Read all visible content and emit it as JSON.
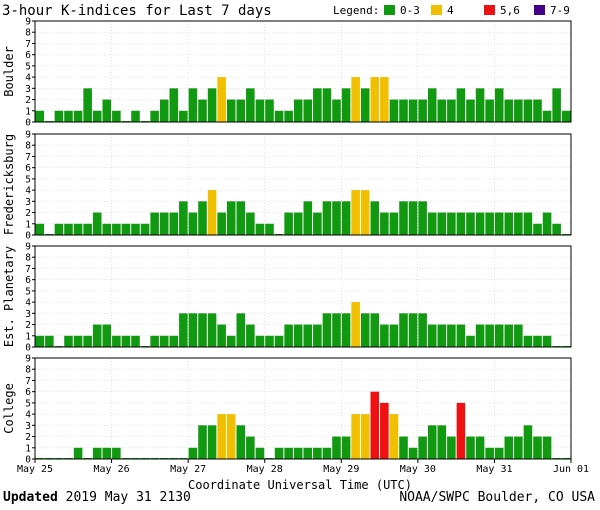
{
  "chart_data": {
    "type": "bar",
    "title": "3-hour K-indices for Last 7 days",
    "legend": {
      "label": "Legend:",
      "placement": "top-right",
      "entries": [
        {
          "label": "0-3",
          "color": "#119911"
        },
        {
          "label": "4",
          "color": "#f0c000"
        },
        {
          "label": "5,6",
          "color": "#ee1111"
        },
        {
          "label": "7-9",
          "color": "#440088"
        }
      ]
    },
    "xlabel": "Coordinate Universal Time (UTC)",
    "x_ticks": [
      "May 25",
      "May 26",
      "May 27",
      "May 28",
      "May 29",
      "May 30",
      "May 31",
      "Jun 01"
    ],
    "ylim": [
      0,
      9
    ],
    "y_ticks": [
      "0",
      "1",
      "2",
      "3",
      "4",
      "5",
      "6",
      "7",
      "8",
      "9"
    ],
    "bars_per_panel": 56,
    "panels": [
      {
        "name": "Boulder",
        "values": [
          1,
          0,
          1,
          1,
          1,
          3,
          1,
          2,
          1,
          0,
          1,
          0,
          1,
          2,
          3,
          1,
          3,
          2,
          3,
          4,
          2,
          2,
          3,
          2,
          2,
          1,
          1,
          2,
          2,
          3,
          3,
          2,
          3,
          4,
          3,
          4,
          4,
          2,
          2,
          2,
          2,
          3,
          2,
          2,
          3,
          2,
          3,
          2,
          3,
          2,
          2,
          2,
          2,
          1,
          3,
          1
        ]
      },
      {
        "name": "Fredericksburg",
        "values": [
          1,
          0,
          1,
          1,
          1,
          1,
          2,
          1,
          1,
          1,
          1,
          1,
          2,
          2,
          2,
          3,
          2,
          3,
          4,
          2,
          3,
          3,
          2,
          1,
          1,
          0,
          2,
          2,
          3,
          2,
          3,
          3,
          3,
          4,
          4,
          3,
          2,
          2,
          3,
          3,
          3,
          2,
          2,
          2,
          2,
          2,
          2,
          2,
          2,
          2,
          2,
          2,
          1,
          2,
          1,
          0
        ]
      },
      {
        "name": "Est. Planetary",
        "values": [
          1,
          1,
          0,
          1,
          1,
          1,
          2,
          2,
          1,
          1,
          1,
          0,
          1,
          1,
          1,
          3,
          3,
          3,
          3,
          2,
          1,
          3,
          2,
          1,
          1,
          1,
          2,
          2,
          2,
          2,
          3,
          3,
          3,
          4,
          3,
          3,
          2,
          2,
          3,
          3,
          3,
          2,
          2,
          2,
          2,
          1,
          2,
          2,
          2,
          2,
          2,
          1,
          1,
          1,
          0,
          0
        ]
      },
      {
        "name": "College",
        "values": [
          0,
          0,
          0,
          0,
          1,
          0,
          1,
          1,
          1,
          0,
          0,
          0,
          0,
          0,
          0,
          0,
          1,
          3,
          3,
          4,
          4,
          3,
          2,
          1,
          0,
          1,
          1,
          1,
          1,
          1,
          1,
          2,
          2,
          4,
          4,
          6,
          5,
          4,
          2,
          1,
          2,
          3,
          3,
          2,
          5,
          2,
          2,
          1,
          1,
          2,
          2,
          3,
          2,
          2,
          0,
          0
        ]
      }
    ]
  },
  "footer": {
    "updated_label": "Updated",
    "updated_value": "2019 May 31 2130",
    "credit": "NOAA/SWPC Boulder, CO USA"
  }
}
